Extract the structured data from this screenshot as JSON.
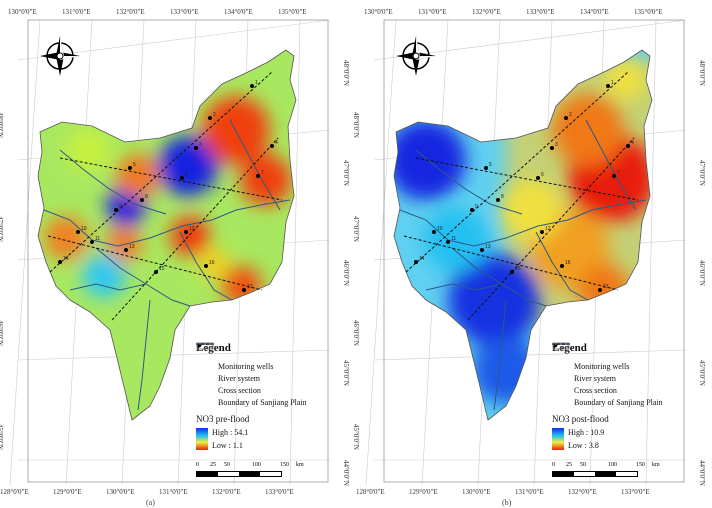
{
  "panels": [
    {
      "id": "pre",
      "top_ticks": [
        "130°0'0\"E",
        "131°0'0\"E",
        "132°0'0\"E",
        "133°0'0\"E",
        "134°0'0\"E",
        "135°0'0\"E"
      ],
      "bottom_ticks": [
        "128°0'0\"E",
        "129°0'0\"E",
        "130°0'0\"E",
        "131°0'0\"E",
        "132°0'0\"E",
        "133°0'0\"E"
      ],
      "left_ticks": [
        "48°0'0\"N",
        "47°0'0\"N",
        "46°0'0\"N",
        "45°0'0\"N"
      ],
      "right_ticks": [
        "48°0'0\"N",
        "47°0'0\"N",
        "46°0'0\"N",
        "45°0'0\"N",
        "44°0'0\"N"
      ],
      "legend": {
        "title": "Legend",
        "items": [
          "Monitoring wells",
          "River system",
          "Cross section",
          "Boundary of Sanjiang Plain"
        ],
        "variable": "NO3  pre-flood",
        "high": "High : 54.1",
        "low": "Low : 1.1",
        "scale_numbers": [
          "0",
          "25",
          "50",
          "100",
          "150"
        ],
        "scale_unit": "km"
      },
      "panel_label": "(a)"
    },
    {
      "id": "post",
      "top_ticks": [
        "130°0'0\"E",
        "131°0'0\"E",
        "132°0'0\"E",
        "133°0'0\"E",
        "134°0'0\"E",
        "135°0'0\"E"
      ],
      "bottom_ticks": [
        "128°0'0\"E",
        "129°0'0\"E",
        "130°0'0\"E",
        "131°0'0\"E",
        "132°0'0\"E",
        "133°0'0\"E"
      ],
      "left_ticks": [
        "48°0'0\"N",
        "47°0'0\"N",
        "46°0'0\"N",
        "45°0'0\"N"
      ],
      "right_ticks": [
        "48°0'0\"N",
        "47°0'0\"N",
        "46°0'0\"N",
        "45°0'0\"N",
        "44°0'0\"N"
      ],
      "legend": {
        "title": "Legend",
        "items": [
          "Monitoring wells",
          "River system",
          "Cross section",
          "Boundary of Sanjiang Plain"
        ],
        "variable": "NO3  post-flood",
        "high": "High : 10.9",
        "low": "Low : 3.8",
        "scale_numbers": [
          "0",
          "25",
          "50",
          "100",
          "150"
        ],
        "scale_unit": "km"
      },
      "panel_label": "(b)"
    }
  ],
  "well_numbers": [
    "1",
    "2",
    "3",
    "4",
    "5",
    "6",
    "7",
    "8",
    "9",
    "10",
    "11",
    "12",
    "13",
    "14",
    "15",
    "16",
    "17"
  ],
  "colors": {
    "high_pre": "#1020d8",
    "low_pre": "#e82010",
    "high_post": "#1020d8",
    "low_post": "#e82010",
    "river": "#2a5a8a"
  },
  "icons": [
    "north-arrow-icon"
  ]
}
